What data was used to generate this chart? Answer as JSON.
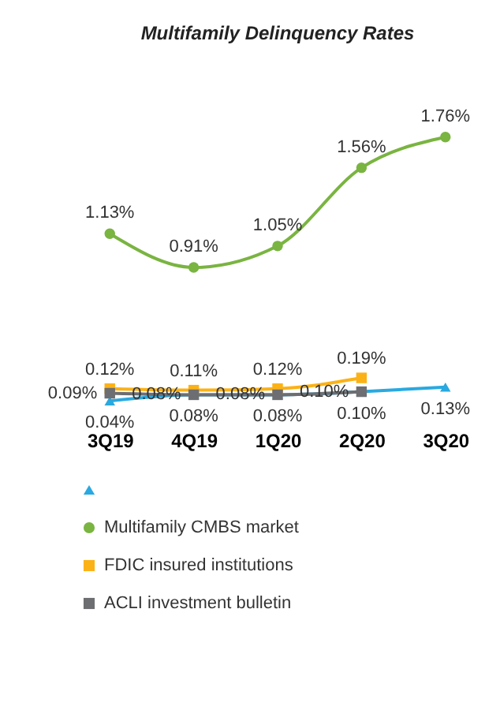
{
  "chart_data": {
    "type": "line",
    "title": "Multifamily Delinquency Rates",
    "categories": [
      "3Q19",
      "4Q19",
      "1Q20",
      "2Q20",
      "3Q20"
    ],
    "series": [
      {
        "color": "#29a9e0",
        "marker": "triangle",
        "values": [
          0.04,
          0.08,
          0.08,
          0.1,
          0.13
        ],
        "value_labels": [
          "0.04%",
          "0.08%",
          "0.08%",
          "0.10%",
          "0.13%"
        ]
      },
      {
        "name": "Multifamily CMBS market",
        "color": "#7ab441",
        "marker": "circle",
        "values": [
          1.13,
          0.91,
          1.05,
          1.56,
          1.76
        ],
        "value_labels": [
          "1.13%",
          "0.91%",
          "1.05%",
          "1.56%",
          "1.76%"
        ]
      },
      {
        "name": "FDIC insured institutions",
        "color": "#fbb217",
        "marker": "square",
        "values": [
          0.12,
          0.11,
          0.12,
          0.19,
          null
        ],
        "value_labels": [
          "0.12%",
          "0.11%",
          "0.12%",
          "0.19%",
          null
        ]
      },
      {
        "name": "ACLI investment bulletin",
        "color": "#6d6e71",
        "marker": "square",
        "values": [
          0.09,
          0.08,
          0.08,
          0.1,
          null
        ],
        "value_labels": [
          "0.09%",
          "0.08%",
          "0.08%",
          "0.10%",
          null
        ]
      }
    ],
    "legend": "bottom",
    "grid": false
  }
}
